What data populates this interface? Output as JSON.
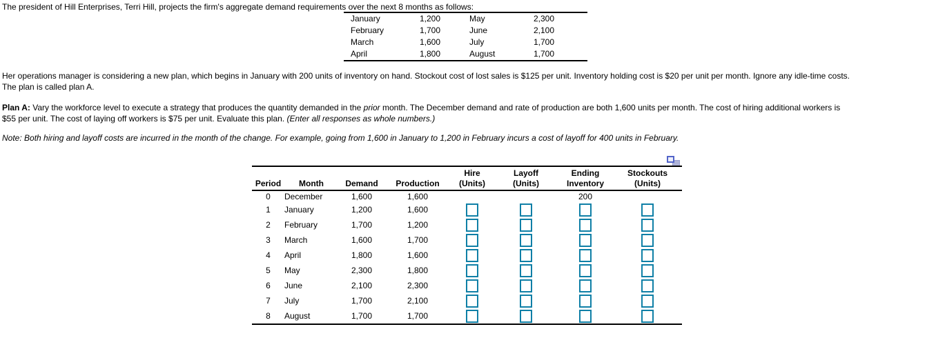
{
  "colors": {
    "input_border": "#0e7fa6",
    "icon_front": "#5264c9",
    "icon_back": "#aeb3d8",
    "table_line": "#000000"
  },
  "intro": "The president of Hill Enterprises, Terri Hill, projects the firm's aggregate demand requirements over the next 8 months as follows:",
  "demand_table": {
    "rows": [
      {
        "m1": "January",
        "v1": "1,200",
        "m2": "May",
        "v2": "2,300"
      },
      {
        "m1": "February",
        "v1": "1,700",
        "m2": "June",
        "v2": "2,100"
      },
      {
        "m1": "March",
        "v1": "1,600",
        "m2": "July",
        "v2": "1,700"
      },
      {
        "m1": "April",
        "v1": "1,800",
        "m2": "August",
        "v2": "1,700"
      }
    ]
  },
  "paragraph2": {
    "lines": [
      "Her operations manager is considering a new plan, which begins in January with 200 units of inventory on hand. Stockout cost of lost sales is $125 per unit. Inventory holding cost is $20 per unit per month. Ignore any idle-time costs.",
      "The plan is called plan A."
    ]
  },
  "plan_paragraph": {
    "segments": [
      {
        "text": "Plan A:",
        "style": "bold"
      },
      {
        "text": " Vary the workforce level to execute a strategy that produces the quantity demanded in the ",
        "style": "normal"
      },
      {
        "text": "prior",
        "style": "italic"
      },
      {
        "text": " month. The December demand and rate of production are both 1,600 units per month. The cost of hiring additional workers is",
        "style": "normal"
      },
      {
        "break": true
      },
      {
        "text": "$55 per unit. The cost of laying off workers is $75 per unit. Evaluate this plan. ",
        "style": "normal"
      },
      {
        "text": "(Enter all responses as whole numbers.)",
        "style": "italic"
      }
    ]
  },
  "note": "Note: Both hiring and layoff costs are incurred in the month of the change. For example, going from 1,600 in January to 1,200 in February incurs a cost of layoff for 400 units in February.",
  "icons": {
    "popout": "popout-icon"
  },
  "plan_table": {
    "headers": [
      {
        "l1": "",
        "l2": "Period"
      },
      {
        "l1": "",
        "l2": "Month"
      },
      {
        "l1": "",
        "l2": "Demand"
      },
      {
        "l1": "",
        "l2": "Production"
      },
      {
        "l1": "Hire",
        "l2": "(Units)"
      },
      {
        "l1": "Layoff",
        "l2": "(Units)"
      },
      {
        "l1": "Ending",
        "l2": "Inventory"
      },
      {
        "l1": "Stockouts",
        "l2": "(Units)"
      }
    ],
    "rows": [
      {
        "period": "0",
        "month": "December",
        "demand": "1,600",
        "production": "1,600",
        "ending_inventory": "200",
        "inputs": false
      },
      {
        "period": "1",
        "month": "January",
        "demand": "1,200",
        "production": "1,600",
        "ending_inventory": "",
        "inputs": true
      },
      {
        "period": "2",
        "month": "February",
        "demand": "1,700",
        "production": "1,200",
        "ending_inventory": "",
        "inputs": true
      },
      {
        "period": "3",
        "month": "March",
        "demand": "1,600",
        "production": "1,700",
        "ending_inventory": "",
        "inputs": true
      },
      {
        "period": "4",
        "month": "April",
        "demand": "1,800",
        "production": "1,600",
        "ending_inventory": "",
        "inputs": true
      },
      {
        "period": "5",
        "month": "May",
        "demand": "2,300",
        "production": "1,800",
        "ending_inventory": "",
        "inputs": true
      },
      {
        "period": "6",
        "month": "June",
        "demand": "2,100",
        "production": "2,300",
        "ending_inventory": "",
        "inputs": true
      },
      {
        "period": "7",
        "month": "July",
        "demand": "1,700",
        "production": "2,100",
        "ending_inventory": "",
        "inputs": true
      },
      {
        "period": "8",
        "month": "August",
        "demand": "1,700",
        "production": "1,700",
        "ending_inventory": "",
        "inputs": true
      }
    ]
  }
}
